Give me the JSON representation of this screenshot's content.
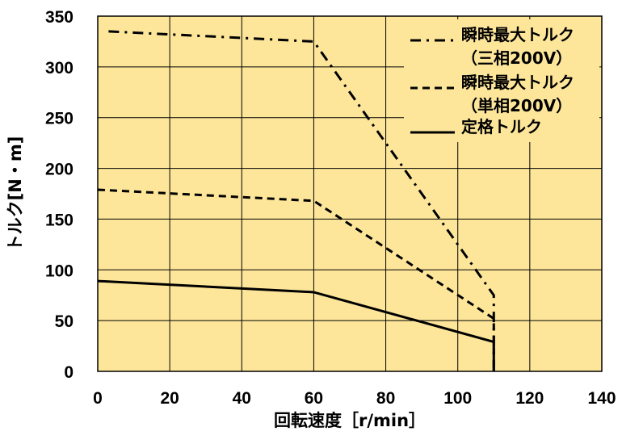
{
  "chart_data": {
    "type": "line",
    "xlabel": "回転速度［r/min］",
    "ylabel": "トルク[N・m]",
    "xlim": [
      0,
      140
    ],
    "ylim": [
      0,
      350
    ],
    "x_ticks": [
      0,
      20,
      40,
      60,
      80,
      100,
      120,
      140
    ],
    "y_ticks": [
      0,
      50,
      100,
      150,
      200,
      250,
      300,
      350
    ],
    "grid": true,
    "background": "#fde69a",
    "legend_position": "top-right",
    "series": [
      {
        "name_lines": [
          "瞬時最大トルク",
          "（三相200V）"
        ],
        "style": "dashdot",
        "points": [
          [
            3,
            335
          ],
          [
            60,
            325
          ],
          [
            110,
            75
          ],
          [
            110,
            0
          ]
        ]
      },
      {
        "name_lines": [
          "瞬時最大トルク",
          "（単相200V）"
        ],
        "style": "dashed",
        "points": [
          [
            0,
            179
          ],
          [
            60,
            168
          ],
          [
            110,
            52
          ],
          [
            110,
            0
          ]
        ]
      },
      {
        "name_lines": [
          "定格トルク"
        ],
        "style": "solid",
        "points": [
          [
            0,
            89
          ],
          [
            60,
            78
          ],
          [
            110,
            29
          ],
          [
            110,
            0
          ]
        ]
      }
    ]
  }
}
